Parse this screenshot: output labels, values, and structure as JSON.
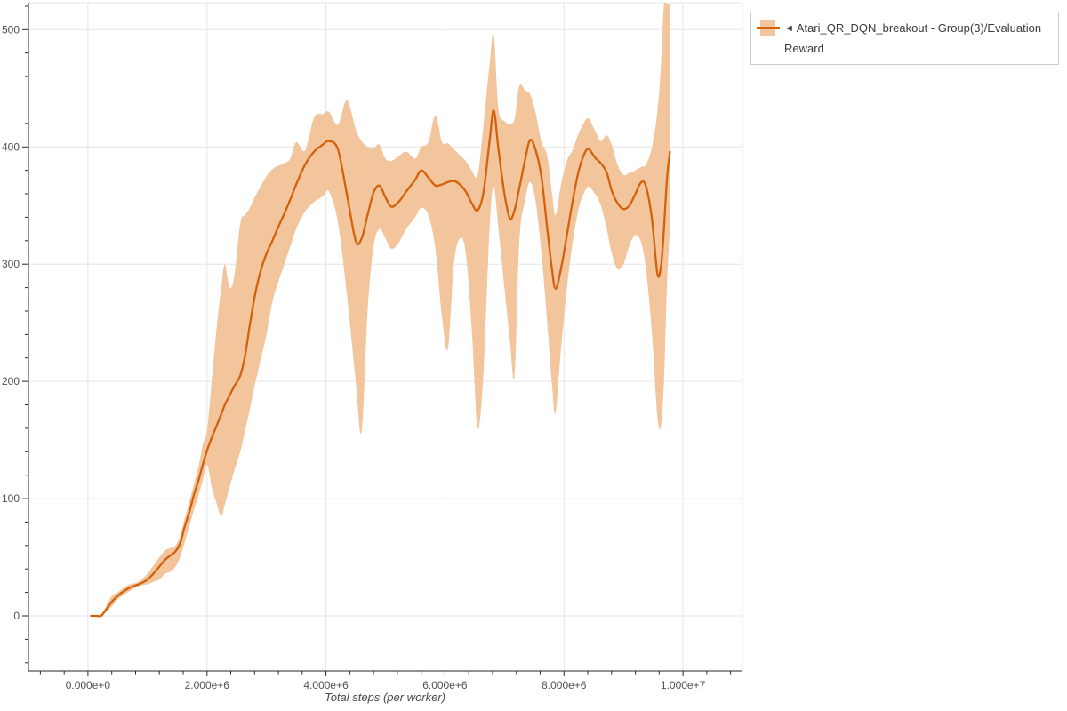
{
  "page": {
    "background": "#ffffff"
  },
  "legend": {
    "marker": "◄",
    "label": "Atari_QR_DQN_breakout - Group(3)/Evaluation Reward",
    "swatch_band_color": "#f3c59d",
    "swatch_line_color": "#d2620c"
  },
  "chart_data": {
    "type": "line",
    "title": "",
    "xlabel": "Total steps (per worker)",
    "ylabel": "",
    "grid": true,
    "legend_position": "top-right-outside",
    "xlim": [
      -1000000,
      11000000
    ],
    "ylim": [
      -47,
      523
    ],
    "x_tick_values": [
      0,
      2000000,
      4000000,
      6000000,
      8000000,
      10000000
    ],
    "x_tick_labels": [
      "0.000e+0",
      "2.000e+6",
      "4.000e+6",
      "6.000e+6",
      "8.000e+6",
      "1.000e+7"
    ],
    "x_minor_step": 400000,
    "y_tick_values": [
      0,
      100,
      200,
      300,
      400,
      500
    ],
    "y_tick_labels": [
      "0",
      "100",
      "200",
      "300",
      "400",
      "500"
    ],
    "y_minor_step": 20,
    "axis_color": "#262626",
    "grid_color": "#e5e5e5",
    "label_color": "#515151",
    "series": [
      {
        "name": "Atari_QR_DQN_breakout - Group(3)/Evaluation Reward",
        "line_color": "#d2620c",
        "band_color": "#f3c59d",
        "x": [
          50000,
          150000,
          220000,
          300000,
          400000,
          500000,
          600000,
          700000,
          800000,
          900000,
          1000000,
          1100000,
          1200000,
          1300000,
          1400000,
          1470000,
          1550000,
          1620000,
          1700000,
          1780000,
          1860000,
          1930000,
          2000000,
          2080000,
          2160000,
          2240000,
          2300000,
          2380000,
          2460000,
          2560000,
          2640000,
          2720000,
          2800000,
          2900000,
          3000000,
          3100000,
          3200000,
          3300000,
          3400000,
          3500000,
          3650000,
          3800000,
          3950000,
          4050000,
          4200000,
          4350000,
          4500000,
          4600000,
          4700000,
          4800000,
          4900000,
          5000000,
          5100000,
          5220000,
          5350000,
          5500000,
          5600000,
          5720000,
          5840000,
          5950000,
          6050000,
          6150000,
          6250000,
          6350000,
          6450000,
          6550000,
          6650000,
          6750000,
          6820000,
          6900000,
          7000000,
          7090000,
          7170000,
          7250000,
          7350000,
          7430000,
          7520000,
          7620000,
          7720000,
          7800000,
          7860000,
          7950000,
          8050000,
          8150000,
          8250000,
          8350000,
          8420000,
          8520000,
          8620000,
          8720000,
          8800000,
          8900000,
          9000000,
          9100000,
          9200000,
          9300000,
          9380000,
          9480000,
          9570000,
          9630000,
          9680000,
          9730000,
          9780000
        ],
        "mean": [
          0,
          0,
          0,
          5,
          12,
          17,
          21,
          24,
          26,
          28,
          31,
          36,
          42,
          48,
          52,
          55,
          62,
          75,
          88,
          103,
          116,
          129,
          141,
          152,
          162,
          172,
          180,
          188,
          196,
          205,
          222,
          248,
          272,
          294,
          309,
          320,
          332,
          343,
          355,
          368,
          385,
          396,
          402,
          405,
          398,
          360,
          320,
          322,
          342,
          361,
          367,
          357,
          349,
          353,
          362,
          372,
          380,
          374,
          367,
          368,
          370,
          371,
          368,
          362,
          352,
          346,
          362,
          405,
          431,
          398,
          360,
          339,
          346,
          365,
          390,
          406,
          398,
          375,
          330,
          295,
          279,
          296,
          325,
          355,
          380,
          395,
          398,
          391,
          386,
          378,
          363,
          352,
          347,
          350,
          360,
          370,
          366,
          338,
          292,
          298,
          330,
          372,
          396
        ],
        "band_lower": [
          0,
          0,
          0,
          3,
          8,
          14,
          18,
          21,
          24,
          26,
          27,
          29,
          31,
          36,
          38,
          42,
          50,
          62,
          76,
          90,
          103,
          116,
          129,
          110,
          96,
          85,
          95,
          110,
          124,
          140,
          158,
          176,
          196,
          218,
          240,
          268,
          285,
          300,
          315,
          330,
          345,
          353,
          358,
          362,
          336,
          275,
          200,
          157,
          260,
          315,
          330,
          322,
          313,
          318,
          330,
          340,
          348,
          342,
          313,
          255,
          228,
          300,
          322,
          310,
          245,
          160,
          210,
          330,
          366,
          330,
          280,
          235,
          205,
          320,
          355,
          370,
          355,
          310,
          250,
          196,
          173,
          228,
          280,
          320,
          348,
          362,
          366,
          360,
          350,
          330,
          310,
          296,
          300,
          316,
          325,
          318,
          295,
          240,
          170,
          162,
          200,
          280,
          330
        ],
        "band_upper": [
          0,
          0,
          1,
          8,
          17,
          20,
          24,
          27,
          28,
          31,
          36,
          43,
          50,
          56,
          58,
          60,
          68,
          82,
          97,
          112,
          128,
          146,
          158,
          200,
          245,
          280,
          300,
          280,
          290,
          335,
          342,
          348,
          357,
          366,
          375,
          381,
          384,
          386,
          390,
          404,
          397,
          425,
          428,
          430,
          419,
          440,
          415,
          405,
          400,
          399,
          402,
          390,
          388,
          392,
          396,
          390,
          400,
          404,
          427,
          404,
          403,
          398,
          393,
          388,
          380,
          376,
          420,
          470,
          496,
          432,
          422,
          420,
          424,
          452,
          448,
          445,
          430,
          405,
          392,
          360,
          342,
          368,
          388,
          398,
          412,
          422,
          424,
          414,
          405,
          410,
          402,
          385,
          376,
          378,
          380,
          383,
          385,
          400,
          430,
          470,
          521,
          522,
          522
        ]
      }
    ]
  }
}
